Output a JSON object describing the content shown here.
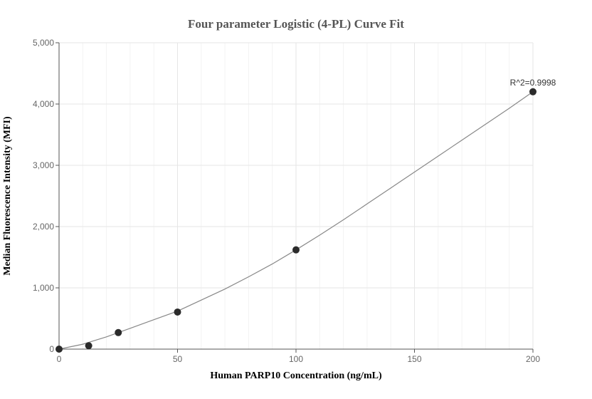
{
  "chart_data": {
    "type": "scatter",
    "title": "Four parameter Logistic (4-PL) Curve Fit",
    "xlabel": "Human PARP10 Concentration (ng/mL)",
    "ylabel": "Median Fluorescence Intensity (MFI)",
    "xlim": [
      0,
      200
    ],
    "ylim": [
      0,
      5000
    ],
    "xticks": [
      0,
      50,
      100,
      150,
      200
    ],
    "yticks": [
      0,
      1000,
      2000,
      3000,
      4000,
      5000
    ],
    "xtick_labels": [
      "0",
      "50",
      "100",
      "150",
      "200"
    ],
    "ytick_labels": [
      "0",
      "1,000",
      "2,000",
      "3,000",
      "4,000",
      "5,000"
    ],
    "grid": true,
    "series": [
      {
        "points": [
          {
            "x": 0,
            "y": 0
          },
          {
            "x": 12.5,
            "y": 55
          },
          {
            "x": 25,
            "y": 270
          },
          {
            "x": 50,
            "y": 605
          },
          {
            "x": 100,
            "y": 1620
          },
          {
            "x": 200,
            "y": 4200
          }
        ],
        "color": "#2b2b2b"
      }
    ],
    "fit_curve": {
      "x": [
        0,
        10,
        20,
        30,
        40,
        50,
        60,
        70,
        80,
        90,
        100,
        110,
        120,
        130,
        140,
        150,
        160,
        170,
        180,
        190,
        200
      ],
      "y": [
        0,
        80,
        200,
        340,
        480,
        620,
        800,
        980,
        1180,
        1390,
        1620,
        1860,
        2110,
        2370,
        2630,
        2890,
        3150,
        3410,
        3670,
        3930,
        4200
      ],
      "color": "#888888"
    },
    "annotations": [
      {
        "text": "R^2=0.9998",
        "x": 200,
        "y": 4200
      }
    ]
  }
}
